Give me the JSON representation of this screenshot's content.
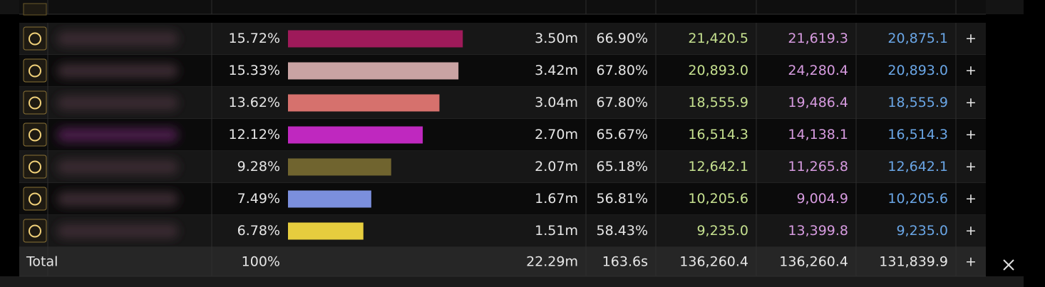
{
  "table": {
    "rows": [
      {
        "share": 15.72,
        "share_label": "15.72%",
        "amount": "3.50m",
        "active": "66.90%",
        "col1": "21,420.5",
        "col2": "21,619.3",
        "col3": "20,875.1",
        "color": "#9e1a5a"
      },
      {
        "share": 15.33,
        "share_label": "15.33%",
        "amount": "3.42m",
        "active": "67.80%",
        "col1": "20,893.0",
        "col2": "24,280.4",
        "col3": "20,893.0",
        "color": "#c9a3a3"
      },
      {
        "share": 13.62,
        "share_label": "13.62%",
        "amount": "3.04m",
        "active": "67.80%",
        "col1": "18,555.9",
        "col2": "19,486.4",
        "col3": "18,555.9",
        "color": "#d6716d"
      },
      {
        "share": 12.12,
        "share_label": "12.12%",
        "amount": "2.70m",
        "active": "65.67%",
        "col1": "16,514.3",
        "col2": "14,138.1",
        "col3": "16,514.3",
        "color": "#bf28bf"
      },
      {
        "share": 9.28,
        "share_label": "9.28%",
        "amount": "2.07m",
        "active": "65.18%",
        "col1": "12,642.1",
        "col2": "11,265.8",
        "col3": "12,642.1",
        "color": "#70642f"
      },
      {
        "share": 7.49,
        "share_label": "7.49%",
        "amount": "1.67m",
        "active": "56.81%",
        "col1": "10,205.6",
        "col2": "9,004.9",
        "col3": "10,205.6",
        "color": "#7b8fdd"
      },
      {
        "share": 6.78,
        "share_label": "6.78%",
        "amount": "1.51m",
        "active": "58.43%",
        "col1": "9,235.0",
        "col2": "13,399.8",
        "col3": "9,235.0",
        "color": "#e6cd3e"
      }
    ],
    "total": {
      "label": "Total",
      "share": "100%",
      "amount": "22.29m",
      "active": "163.6s",
      "col1": "136,260.4",
      "col2": "136,260.4",
      "col3": "131,839.9"
    },
    "row_action": "+"
  }
}
